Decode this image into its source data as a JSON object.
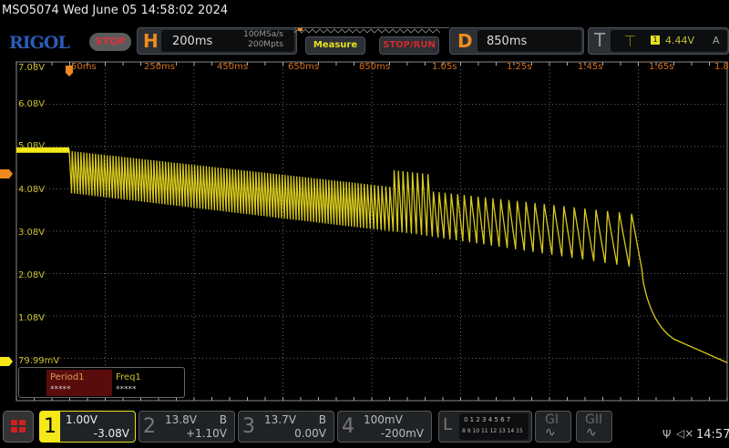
{
  "header": {
    "title": "MSO5074  Wed June 05 14:58:02 2024",
    "logo": "RIGOL",
    "run_state": "STOP"
  },
  "horizontal": {
    "letter": "H",
    "timebase": "200ms",
    "sample_rate": "100MSa/s",
    "memory_depth": "200Mpts"
  },
  "buttons": {
    "measure": "Measure",
    "stop_run": "STOP/RUN"
  },
  "delay": {
    "letter": "D",
    "value": "850ms"
  },
  "trigger": {
    "letter": "T",
    "channel": "1",
    "level": "4.44V",
    "mode": "A",
    "slope_icon": "rising-edge-icon"
  },
  "time_ticks": [
    "50ms",
    "250ms",
    "450ms",
    "650ms",
    "850ms",
    "1.05s",
    "1.25s",
    "1.45s",
    "1.65s",
    "1.85s"
  ],
  "volt_ticks": [
    "7.08V",
    "6.08V",
    "5.08V",
    "4.08V",
    "3.08V",
    "2.08V",
    "1.08V",
    "79.99mV"
  ],
  "measurements": {
    "items": [
      {
        "label": "Period1",
        "value": "*****"
      },
      {
        "label": "Freq1",
        "value": "*****"
      }
    ]
  },
  "channels": [
    {
      "num": "1",
      "scale": "1.00V",
      "offset": "-3.08V",
      "color": "#f5e818"
    },
    {
      "num": "2",
      "scale": "13.8V",
      "bw": "B",
      "offset": "+1.10V"
    },
    {
      "num": "3",
      "scale": "13.7V",
      "bw": "B",
      "offset": "0.00V"
    },
    {
      "num": "4",
      "scale": "100mV",
      "offset": "-200mV"
    }
  ],
  "logic": {
    "letter": "L",
    "row1": "0 1 2 3  4 5 6 7",
    "row2": "8 9 10 11 12 13 14 15"
  },
  "generators": [
    "GI",
    "GII"
  ],
  "status": {
    "time": "14:57"
  }
}
